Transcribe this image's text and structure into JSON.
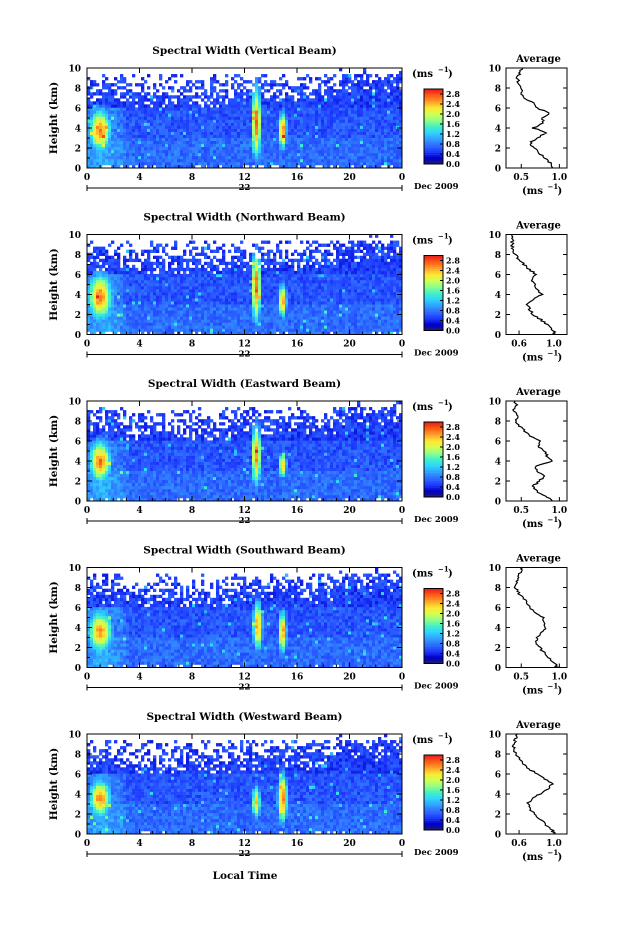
{
  "figure": {
    "footer_label": "Local Time",
    "date_label": "Dec 2009",
    "day_label": "22",
    "units_label": "(ms",
    "units_exp": "−1",
    "colorbar_ticks": [
      "0.0",
      "0.4",
      "0.8",
      "1.2",
      "1.6",
      "2.0",
      "2.4",
      "2.8"
    ],
    "colorbar_colors": [
      "#1b1b6e",
      "#0000c8",
      "#1e3cff",
      "#2f6cff",
      "#2fa0ff",
      "#2fd2ff",
      "#3ff0c8",
      "#8cff8c",
      "#d2ff50",
      "#ffe632",
      "#ffa028",
      "#ff5a14",
      "#e61e1e"
    ],
    "average_title": "Average"
  },
  "chart_data": [
    {
      "type": "heatmap",
      "title": "Spectral Width (Vertical Beam)",
      "ylabel": "Height (km)",
      "x_ticks": [
        "0",
        "4",
        "8",
        "12",
        "16",
        "20",
        "0"
      ],
      "y_ticks": [
        "0",
        "2",
        "4",
        "6",
        "8",
        "10"
      ],
      "xlim": [
        0,
        24
      ],
      "ylim": [
        0,
        10
      ],
      "colorbar": {
        "min": 0.0,
        "max": 3.0,
        "unit": "ms-1"
      },
      "hotspots": [
        {
          "t": 1.0,
          "h": 3.8,
          "width": 0.8,
          "height": 2.0,
          "value": 2.5
        },
        {
          "t": 12.9,
          "h": 4.6,
          "width": 0.35,
          "height": 3.6,
          "value": 2.6
        },
        {
          "t": 14.9,
          "h": 3.8,
          "width": 0.3,
          "height": 1.8,
          "value": 2.5
        }
      ],
      "average": {
        "xlabel": "(ms",
        "x_ticks": [
          "0.5",
          "1.0"
        ],
        "xlim": [
          0.3,
          1.1
        ],
        "profile_h": [
          0,
          0.5,
          1,
          1.5,
          2,
          2.5,
          3,
          3.5,
          4,
          4.5,
          5,
          5.5,
          6,
          6.5,
          7,
          7.5,
          8,
          8.5,
          9,
          9.5,
          10
        ],
        "profile_w": [
          0.92,
          0.88,
          0.82,
          0.74,
          0.66,
          0.62,
          0.7,
          0.84,
          0.66,
          0.8,
          0.78,
          0.88,
          0.7,
          0.66,
          0.55,
          0.5,
          0.5,
          0.46,
          0.45,
          0.48,
          0.52
        ]
      }
    },
    {
      "type": "heatmap",
      "title": "Spectral Width (Northward Beam)",
      "ylabel": "Height (km)",
      "x_ticks": [
        "0",
        "4",
        "8",
        "12",
        "16",
        "20",
        "0"
      ],
      "y_ticks": [
        "0",
        "2",
        "4",
        "6",
        "8",
        "10"
      ],
      "xlim": [
        0,
        24
      ],
      "ylim": [
        0,
        10
      ],
      "colorbar": {
        "min": 0.0,
        "max": 3.0,
        "unit": "ms-1"
      },
      "hotspots": [
        {
          "t": 1.0,
          "h": 3.8,
          "width": 0.9,
          "height": 2.2,
          "value": 2.5
        },
        {
          "t": 12.9,
          "h": 4.8,
          "width": 0.35,
          "height": 3.4,
          "value": 2.6
        },
        {
          "t": 14.9,
          "h": 3.4,
          "width": 0.3,
          "height": 1.6,
          "value": 2.4
        }
      ],
      "average": {
        "xlabel": "(ms",
        "x_ticks": [
          "0.6",
          "1.0"
        ],
        "xlim": [
          0.45,
          1.15
        ],
        "profile_h": [
          0,
          0.5,
          1,
          1.5,
          2,
          2.5,
          3,
          3.5,
          4,
          4.5,
          5,
          5.5,
          6,
          6.5,
          7,
          7.5,
          8,
          8.5,
          9,
          9.5,
          10
        ],
        "profile_w": [
          1.02,
          0.98,
          0.92,
          0.85,
          0.76,
          0.72,
          0.7,
          0.76,
          0.86,
          0.8,
          0.78,
          0.74,
          0.8,
          0.72,
          0.66,
          0.6,
          0.56,
          0.53,
          0.52,
          0.52,
          0.52
        ]
      }
    },
    {
      "type": "heatmap",
      "title": "Spectral Width (Eastward Beam)",
      "ylabel": "Height (km)",
      "x_ticks": [
        "0",
        "4",
        "8",
        "12",
        "16",
        "20",
        "0"
      ],
      "y_ticks": [
        "0",
        "2",
        "4",
        "6",
        "8",
        "10"
      ],
      "xlim": [
        0,
        24
      ],
      "ylim": [
        0,
        10
      ],
      "colorbar": {
        "min": 0.0,
        "max": 3.0,
        "unit": "ms-1"
      },
      "hotspots": [
        {
          "t": 1.0,
          "h": 4.0,
          "width": 0.8,
          "height": 2.0,
          "value": 2.5
        },
        {
          "t": 12.9,
          "h": 4.6,
          "width": 0.35,
          "height": 3.0,
          "value": 2.5
        },
        {
          "t": 14.9,
          "h": 3.6,
          "width": 0.3,
          "height": 1.2,
          "value": 2.2
        }
      ],
      "average": {
        "xlabel": "(ms",
        "x_ticks": [
          "0.5",
          "1.0"
        ],
        "xlim": [
          0.3,
          1.1
        ],
        "profile_h": [
          0,
          0.5,
          1,
          1.5,
          2,
          2.5,
          3,
          3.5,
          4,
          4.5,
          5,
          5.5,
          6,
          6.5,
          7,
          7.5,
          8,
          8.5,
          9,
          9.5,
          10
        ],
        "profile_w": [
          0.92,
          0.8,
          0.7,
          0.66,
          0.74,
          0.8,
          0.7,
          0.68,
          0.9,
          0.84,
          0.8,
          0.72,
          0.76,
          0.62,
          0.55,
          0.48,
          0.42,
          0.45,
          0.4,
          0.44,
          0.42
        ]
      }
    },
    {
      "type": "heatmap",
      "title": "Spectral Width (Southward Beam)",
      "ylabel": "Height (km)",
      "x_ticks": [
        "0",
        "4",
        "8",
        "12",
        "16",
        "20",
        "0"
      ],
      "y_ticks": [
        "0",
        "2",
        "4",
        "6",
        "8",
        "10"
      ],
      "xlim": [
        0,
        24
      ],
      "ylim": [
        0,
        10
      ],
      "colorbar": {
        "min": 0.0,
        "max": 3.0,
        "unit": "ms-1"
      },
      "hotspots": [
        {
          "t": 1.0,
          "h": 3.6,
          "width": 0.9,
          "height": 2.0,
          "value": 2.4
        },
        {
          "t": 13.0,
          "h": 4.2,
          "width": 0.35,
          "height": 2.4,
          "value": 2.4
        },
        {
          "t": 14.9,
          "h": 3.6,
          "width": 0.3,
          "height": 2.0,
          "value": 2.4
        }
      ],
      "average": {
        "xlabel": "(ms",
        "x_ticks": [
          "0.5",
          "1.0"
        ],
        "xlim": [
          0.3,
          1.1
        ],
        "profile_h": [
          0,
          0.5,
          1,
          1.5,
          2,
          2.5,
          3,
          3.5,
          4,
          4.5,
          5,
          5.5,
          6,
          6.5,
          7,
          7.5,
          8,
          8.5,
          9,
          9.5,
          10
        ],
        "profile_w": [
          0.98,
          0.92,
          0.86,
          0.8,
          0.74,
          0.7,
          0.7,
          0.76,
          0.82,
          0.8,
          0.78,
          0.66,
          0.62,
          0.58,
          0.52,
          0.46,
          0.42,
          0.44,
          0.45,
          0.48,
          0.52
        ]
      }
    },
    {
      "type": "heatmap",
      "title": "Spectral Width (Westward Beam)",
      "ylabel": "Height (km)",
      "x_ticks": [
        "0",
        "4",
        "8",
        "12",
        "16",
        "20",
        "0"
      ],
      "y_ticks": [
        "0",
        "2",
        "4",
        "6",
        "8",
        "10"
      ],
      "xlim": [
        0,
        24
      ],
      "ylim": [
        0,
        10
      ],
      "colorbar": {
        "min": 0.0,
        "max": 3.0,
        "unit": "ms-1"
      },
      "hotspots": [
        {
          "t": 1.0,
          "h": 3.6,
          "width": 0.8,
          "height": 1.8,
          "value": 2.4
        },
        {
          "t": 12.9,
          "h": 3.2,
          "width": 0.3,
          "height": 1.6,
          "value": 2.3
        },
        {
          "t": 14.9,
          "h": 3.6,
          "width": 0.35,
          "height": 2.4,
          "value": 2.6
        }
      ],
      "average": {
        "xlabel": "(ms",
        "x_ticks": [
          "0.6",
          "1.0"
        ],
        "xlim": [
          0.45,
          1.15
        ],
        "profile_h": [
          0,
          0.5,
          1,
          1.5,
          2,
          2.5,
          3,
          3.5,
          4,
          4.5,
          5,
          5.5,
          6,
          6.5,
          7,
          7.5,
          8,
          8.5,
          9,
          9.5,
          10
        ],
        "profile_w": [
          1.02,
          0.96,
          0.9,
          0.84,
          0.78,
          0.72,
          0.7,
          0.74,
          0.84,
          0.94,
          0.98,
          0.9,
          0.8,
          0.72,
          0.64,
          0.6,
          0.56,
          0.54,
          0.54,
          0.56,
          0.58
        ]
      }
    }
  ]
}
